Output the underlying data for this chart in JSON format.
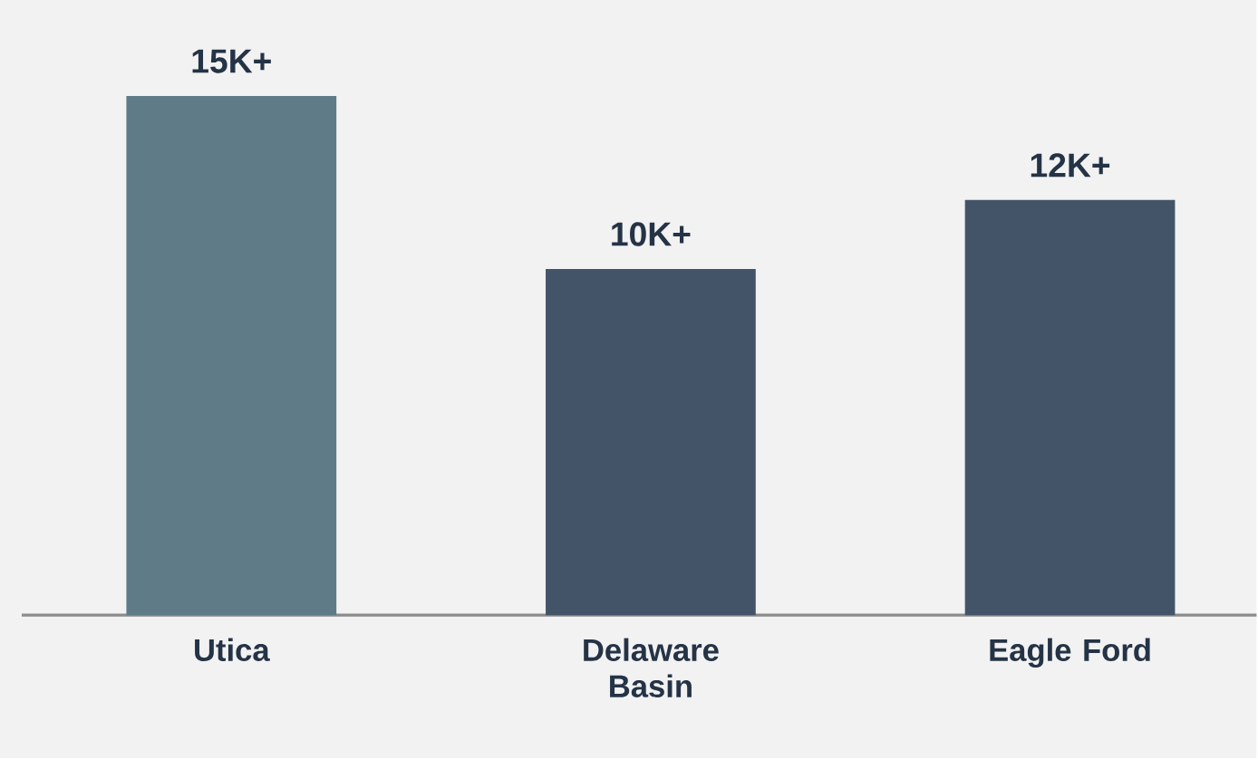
{
  "chart_data": {
    "type": "bar",
    "categories": [
      "Utica",
      "Delaware Basin",
      "Eagle Ford"
    ],
    "values": [
      15000,
      10000,
      12000
    ],
    "colors": [
      "#5f7b87",
      "#435469",
      "#435469"
    ],
    "value_labels": [
      "15K+",
      "10K+",
      "12K+"
    ]
  }
}
